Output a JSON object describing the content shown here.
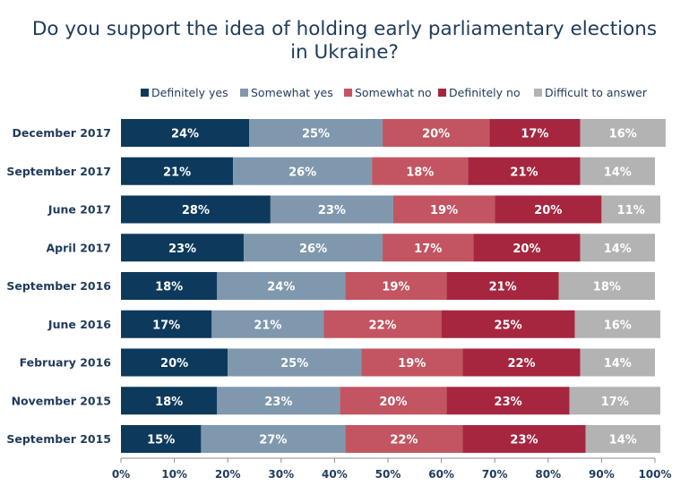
{
  "chart_data": {
    "type": "bar",
    "orientation": "horizontal",
    "stacked": true,
    "title_line1": "Do you support the idea of holding early parliamentary elections",
    "title_line2": "in Ukraine?",
    "categories": [
      "December 2017",
      "September 2017",
      "June 2017",
      "April 2017",
      "September 2016",
      "June 2016",
      "February 2016",
      "November 2015",
      "September 2015"
    ],
    "series": [
      {
        "name": "Definitely yes",
        "color": "#0d3a5c",
        "values": [
          24,
          21,
          28,
          23,
          18,
          17,
          20,
          18,
          15
        ]
      },
      {
        "name": "Somewhat yes",
        "color": "#7f98ad",
        "values": [
          25,
          26,
          23,
          26,
          24,
          21,
          25,
          23,
          27
        ]
      },
      {
        "name": "Somewhat no",
        "color": "#c25561",
        "values": [
          20,
          18,
          19,
          17,
          19,
          22,
          19,
          20,
          22
        ]
      },
      {
        "name": "Definitely no",
        "color": "#a62640",
        "values": [
          17,
          21,
          20,
          20,
          21,
          25,
          22,
          23,
          23
        ]
      },
      {
        "name": "Difficult to answer",
        "color": "#b3b3b3",
        "values": [
          16,
          14,
          11,
          14,
          18,
          16,
          14,
          17,
          14
        ]
      }
    ],
    "xlim": [
      0,
      100
    ],
    "xticks": [
      "0%",
      "10%",
      "20%",
      "30%",
      "40%",
      "50%",
      "60%",
      "70%",
      "80%",
      "90%",
      "100%"
    ],
    "legend_position": "top",
    "data_label_suffix": "%"
  }
}
